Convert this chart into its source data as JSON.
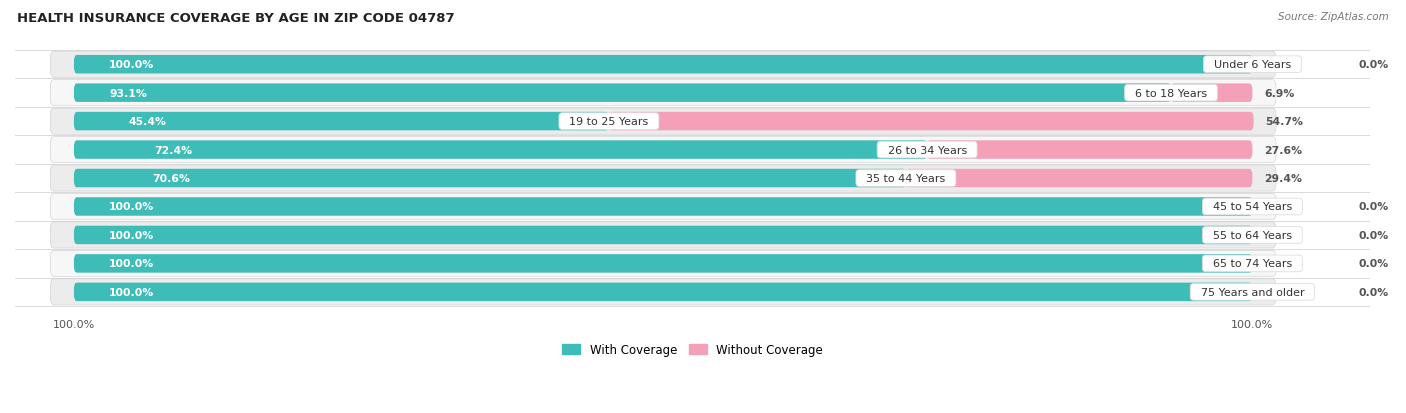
{
  "title": "HEALTH INSURANCE COVERAGE BY AGE IN ZIP CODE 04787",
  "source": "Source: ZipAtlas.com",
  "categories": [
    "Under 6 Years",
    "6 to 18 Years",
    "19 to 25 Years",
    "26 to 34 Years",
    "35 to 44 Years",
    "45 to 54 Years",
    "55 to 64 Years",
    "65 to 74 Years",
    "75 Years and older"
  ],
  "with_coverage": [
    100.0,
    93.1,
    45.4,
    72.4,
    70.6,
    100.0,
    100.0,
    100.0,
    100.0
  ],
  "without_coverage": [
    0.0,
    6.9,
    54.7,
    27.6,
    29.4,
    0.0,
    0.0,
    0.0,
    0.0
  ],
  "color_with": "#3DBCB8",
  "color_without": "#F4A0B8",
  "bg_color": "#FFFFFF",
  "row_color_odd": "#ECECEC",
  "row_color_even": "#F7F7F7",
  "title_fontsize": 9.5,
  "bar_val_fontsize": 7.8,
  "cat_label_fontsize": 8.0,
  "legend_fontsize": 8.5,
  "source_fontsize": 7.5,
  "text_white": "#FFFFFF",
  "text_dark": "#555555",
  "total_width": 100.0,
  "xlim_left": -5,
  "xlim_right": 105
}
